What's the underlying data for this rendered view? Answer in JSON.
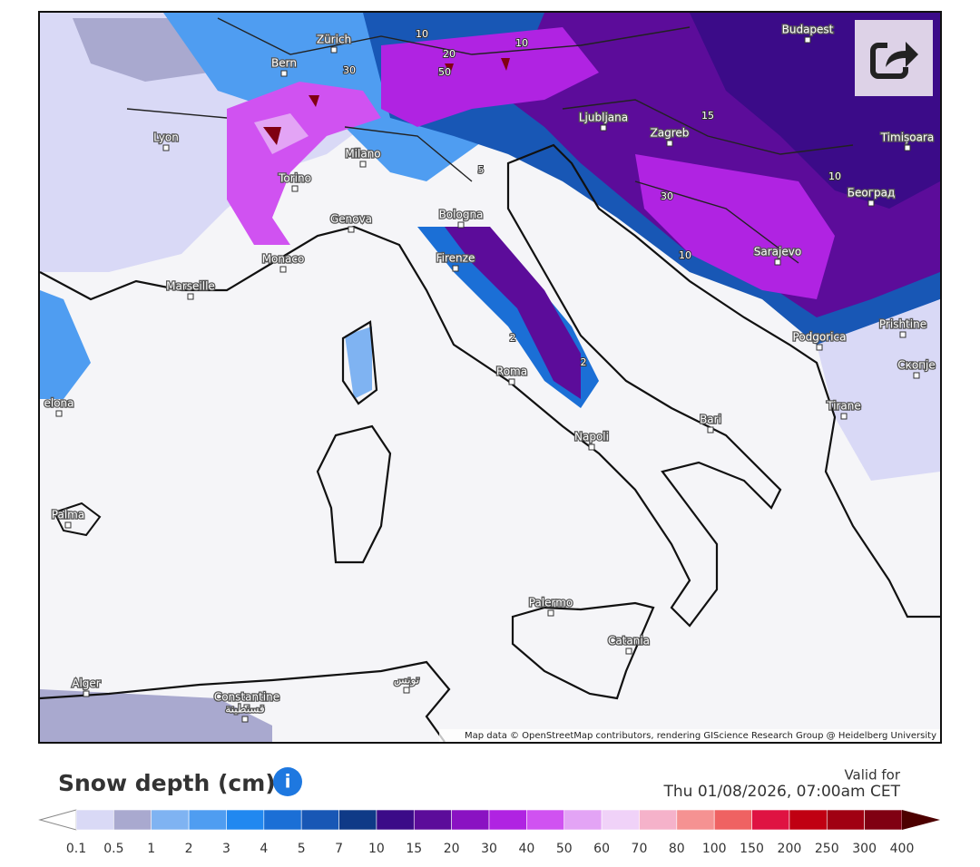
{
  "map": {
    "cities": [
      "Zürich",
      "Bern",
      "Budapest",
      "Lyon",
      "Milano",
      "Ljubljana",
      "Zagreb",
      "Timișoara",
      "Torino",
      "Београд",
      "Genova",
      "Bologna",
      "Monaco",
      "Sarajevo",
      "Firenze",
      "Marseille",
      "Prishtine",
      "Podgorica",
      "Roma",
      "Скопје",
      "elona",
      "Tirane",
      "Bari",
      "Napoli",
      "Palma",
      "Palermo",
      "Catania",
      "Alger",
      "Constantine",
      "قسنطينة",
      "تونس"
    ],
    "contour_labels": [
      "10",
      "30",
      "20",
      "50",
      "10",
      "5",
      "2",
      "2",
      "30",
      "15",
      "10",
      "10"
    ],
    "attribution": "Map data © OpenStreetMap contributors, rendering GIScience Research Group @ Heidelberg University"
  },
  "legend": {
    "title": "Snow depth (cm)",
    "valid_label": "Valid for",
    "valid_time": "Thu 01/08/2026, 07:00am CET",
    "ticks": [
      0.1,
      0.5,
      1,
      2,
      3,
      4,
      5,
      7,
      10,
      15,
      20,
      30,
      40,
      50,
      60,
      70,
      80,
      100,
      150,
      200,
      250,
      300,
      400
    ],
    "colors": [
      "#d9d9f6",
      "#a9a9cf",
      "#7fb3f2",
      "#4f9df1",
      "#2188f0",
      "#1b6fd6",
      "#1857b5",
      "#0f3a87",
      "#3b0b88",
      "#5c0c9a",
      "#8a12c2",
      "#b023e2",
      "#d052f1",
      "#e3a4f5",
      "#f0d2f8",
      "#f5b2ca",
      "#f59292",
      "#ef6262",
      "#df1342",
      "#c00012",
      "#a00012",
      "#800012"
    ],
    "low_color": "#ffffff",
    "high_color": "#4d0000"
  }
}
